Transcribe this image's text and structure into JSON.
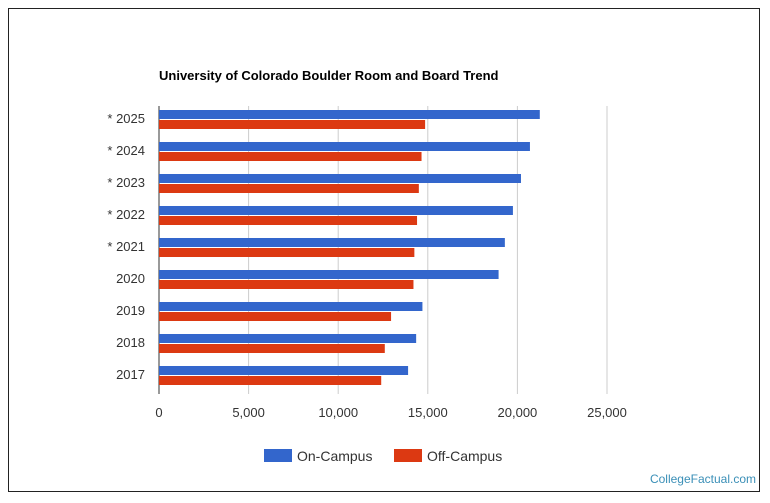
{
  "chart_data": {
    "type": "bar",
    "orientation": "horizontal",
    "title": "University of Colorado Boulder Room and Board Trend",
    "categories": [
      "* 2025",
      "* 2024",
      "* 2023",
      "* 2022",
      "* 2021",
      "2020",
      "2019",
      "2018",
      "2017"
    ],
    "series": [
      {
        "name": "On-Campus",
        "color": "#3366cc",
        "values": [
          21250,
          20700,
          20200,
          19750,
          19300,
          18950,
          14700,
          14350,
          13900
        ]
      },
      {
        "name": "Off-Campus",
        "color": "#dc3912",
        "values": [
          14850,
          14650,
          14500,
          14400,
          14250,
          14200,
          12950,
          12600,
          12400
        ]
      }
    ],
    "x_ticks": [
      "0",
      "5,000",
      "10,000",
      "15,000",
      "20,000",
      "25,000"
    ],
    "xlim": [
      0,
      25000
    ],
    "grid": true,
    "legend_position": "bottom"
  },
  "watermark": "CollegeFactual.com"
}
